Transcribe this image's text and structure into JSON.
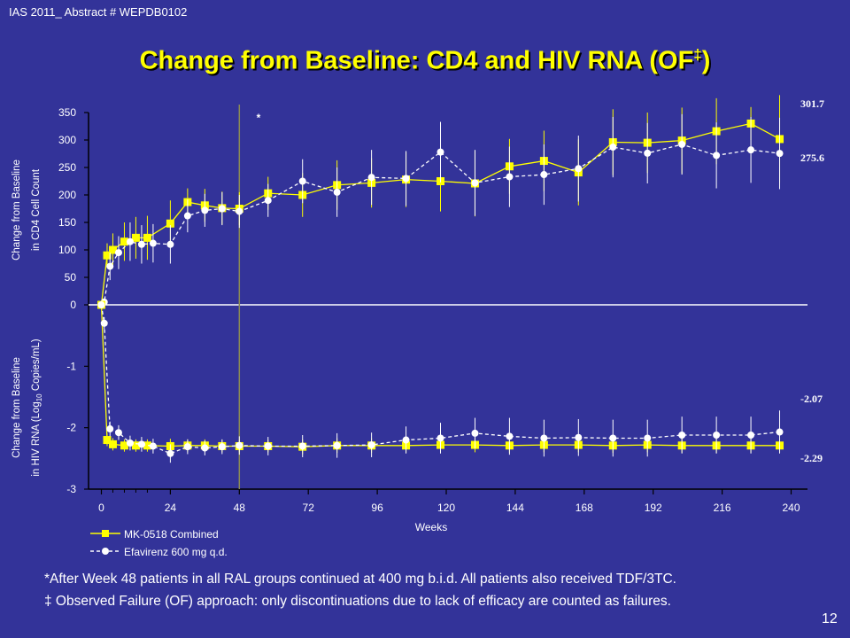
{
  "slide": {
    "header_ref": "IAS 2011_ Abstract # WEPDB0102",
    "title_main": "Change from Baseline: CD4 and HIV RNA (OF",
    "title_sup": "‡",
    "title_end": ")",
    "footnote_1": "*After Week 48 patients in all RAL groups continued at 400 mg b.i.d. All patients also received TDF/3TC.",
    "footnote_2": "‡ Observed Failure (OF) approach: only discontinuations due to lack of efficacy are counted as failures.",
    "slide_number": "12"
  },
  "chart_data": {
    "type": "line",
    "xlabel": "Weeks",
    "x_ticks": [
      0,
      24,
      48,
      72,
      96,
      120,
      144,
      168,
      192,
      216,
      240
    ],
    "xlim": [
      -2,
      242
    ],
    "reference_line_x": 48,
    "annotation": "*",
    "colors": {
      "combined": "#ffff00",
      "efavirenz": "#ffffff",
      "background": "#333399"
    },
    "legend": [
      {
        "name": "MK-0518 Combined",
        "style": "solid-square"
      },
      {
        "name": "Efavirenz 600 mg q.d.",
        "style": "dashed-circle"
      }
    ],
    "legend_position": "bottom-left",
    "panels": [
      {
        "id": "cd4",
        "ylabel_line1": "Change from Baseline",
        "ylabel_line2": "in CD4 Cell Count",
        "ylim": [
          0,
          350
        ],
        "y_ticks": [
          0,
          50,
          100,
          150,
          200,
          250,
          300,
          350
        ],
        "series": [
          {
            "name": "MK-0518 Combined",
            "x": [
              0,
              2,
              4,
              8,
              12,
              16,
              24,
              30,
              36,
              42,
              48,
              58,
              70,
              82,
              94,
              106,
              118,
              130,
              142,
              154,
              166,
              178,
              190,
              202,
              214,
              226,
              236
            ],
            "y": [
              0,
              90,
              100,
              115,
              122,
              122,
              148,
              187,
              181,
              176,
              175,
              203,
              200,
              218,
              222,
              228,
              225,
              221,
              252,
              262,
              241,
              296,
              295,
              299,
              316,
              330,
              301.7
            ],
            "err": [
              0,
              22,
              30,
              35,
              38,
              40,
              42,
              25,
              30,
              30,
              30,
              30,
              40,
              45,
              45,
              50,
              55,
              60,
              50,
              55,
              60,
              60,
              55,
              60,
              60,
              30,
              80
            ]
          },
          {
            "name": "Efavirenz 600 mg q.d.",
            "x": [
              0,
              1,
              3,
              6,
              10,
              14,
              18,
              24,
              30,
              36,
              42,
              48,
              58,
              70,
              82,
              94,
              106,
              118,
              130,
              142,
              154,
              166,
              178,
              190,
              202,
              214,
              226,
              236
            ],
            "y": [
              0,
              5,
              70,
              95,
              115,
              110,
              112,
              110,
              162,
              172,
              175,
              170,
              190,
              225,
              205,
              232,
              230,
              278,
              222,
              233,
              237,
              248,
              287,
              276,
              292,
              272,
              282,
              275.6
            ],
            "err": [
              0,
              5,
              25,
              30,
              35,
              35,
              35,
              35,
              30,
              30,
              30,
              30,
              30,
              40,
              45,
              50,
              50,
              55,
              60,
              55,
              55,
              60,
              55,
              55,
              55,
              60,
              60,
              65
            ]
          }
        ],
        "end_labels": [
          "301.7",
          "275.6"
        ]
      },
      {
        "id": "hiv_rna",
        "ylabel_line1": "Change from Baseline",
        "ylabel_line2_pre": "in HIV RNA (Log",
        "ylabel_line2_sub": "10",
        "ylabel_line2_post": " Copies/mL)",
        "ylim": [
          -3,
          0
        ],
        "y_ticks": [
          0,
          -1,
          -2,
          -3
        ],
        "series": [
          {
            "name": "MK-0518 Combined",
            "x": [
              0,
              2,
              4,
              8,
              12,
              16,
              24,
              30,
              36,
              42,
              48,
              58,
              70,
              82,
              94,
              106,
              118,
              130,
              142,
              154,
              166,
              178,
              190,
              202,
              214,
              226,
              236
            ],
            "y": [
              0,
              -2.2,
              -2.27,
              -2.29,
              -2.29,
              -2.29,
              -2.3,
              -2.29,
              -2.29,
              -2.3,
              -2.3,
              -2.3,
              -2.31,
              -2.29,
              -2.29,
              -2.29,
              -2.28,
              -2.28,
              -2.29,
              -2.28,
              -2.28,
              -2.29,
              -2.28,
              -2.29,
              -2.29,
              -2.29,
              -2.29
            ],
            "err": [
              0,
              0.1,
              0.1,
              0.1,
              0.1,
              0.1,
              0.12,
              0.1,
              0.1,
              0.1,
              0.1,
              0.1,
              0.12,
              0.12,
              0.12,
              0.12,
              0.12,
              0.12,
              0.12,
              0.12,
              0.12,
              0.12,
              0.12,
              0.12,
              0.12,
              0.12,
              0.12
            ]
          },
          {
            "name": "Efavirenz 600 mg q.d.",
            "x": [
              0,
              1,
              3,
              6,
              10,
              14,
              18,
              24,
              30,
              36,
              42,
              48,
              58,
              70,
              82,
              94,
              106,
              118,
              130,
              142,
              154,
              166,
              178,
              190,
              202,
              214,
              226,
              236
            ],
            "y": [
              0,
              -0.3,
              -2.02,
              -2.08,
              -2.25,
              -2.27,
              -2.3,
              -2.42,
              -2.31,
              -2.33,
              -2.31,
              -2.29,
              -2.3,
              -2.3,
              -2.29,
              -2.28,
              -2.2,
              -2.17,
              -2.09,
              -2.14,
              -2.17,
              -2.16,
              -2.17,
              -2.17,
              -2.12,
              -2.12,
              -2.12,
              -2.07
            ],
            "err": [
              0,
              0.1,
              0.12,
              0.12,
              0.12,
              0.12,
              0.12,
              0.15,
              0.12,
              0.12,
              0.12,
              0.15,
              0.15,
              0.18,
              0.2,
              0.2,
              0.22,
              0.25,
              0.25,
              0.3,
              0.3,
              0.3,
              0.3,
              0.3,
              0.3,
              0.3,
              0.3,
              0.35
            ]
          }
        ],
        "end_labels": [
          "-2.07",
          "-2.29"
        ]
      }
    ]
  }
}
